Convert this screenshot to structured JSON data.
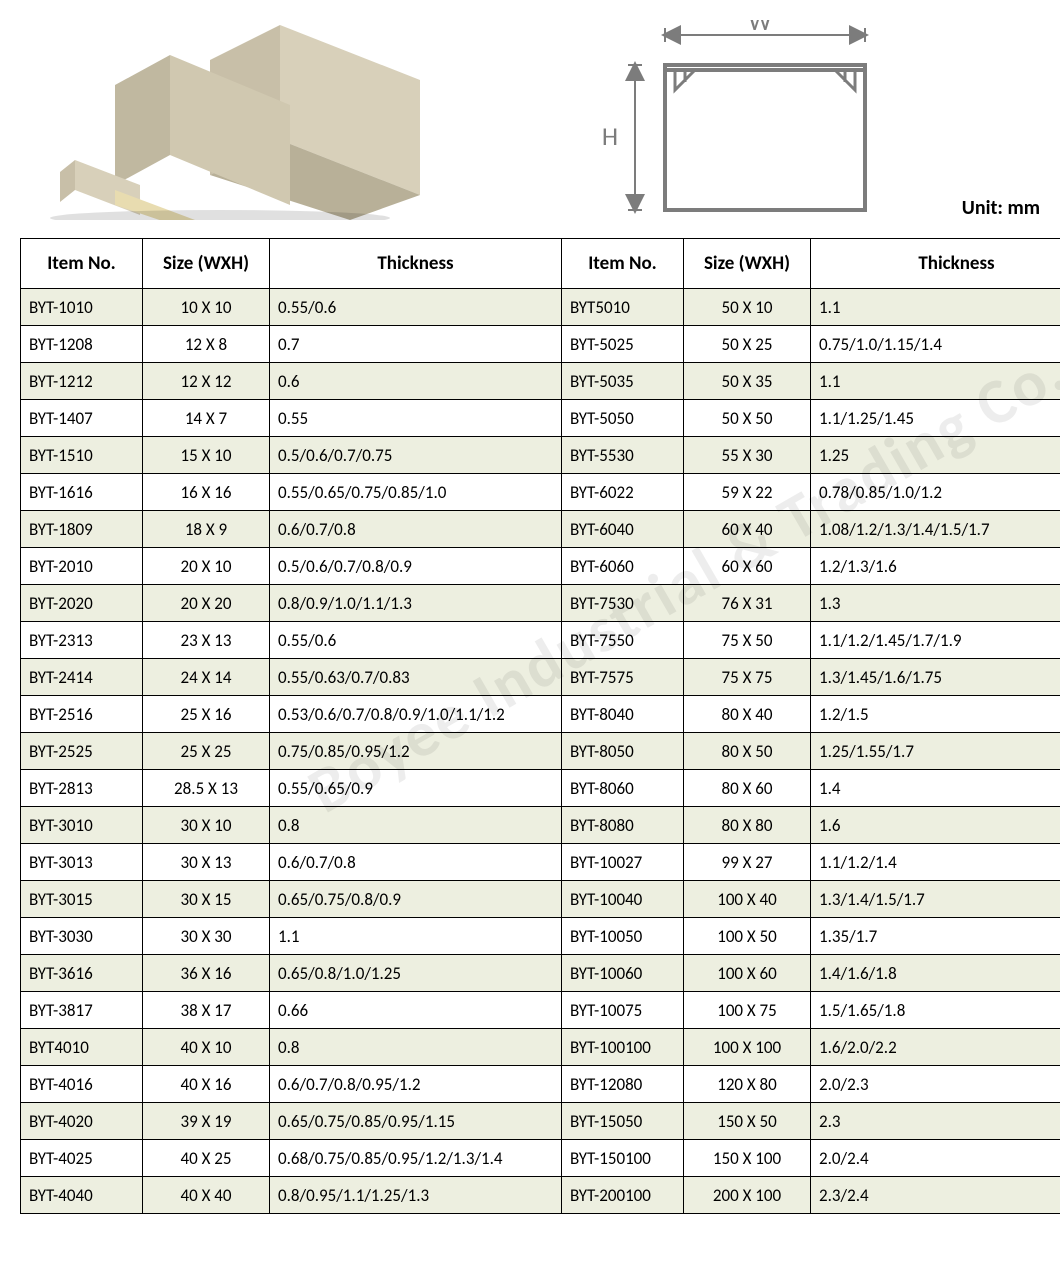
{
  "unit_label": "Unit: mm",
  "watermark_text": "Boyee Industrial & Trading Co., Limited",
  "diagram": {
    "w_label": "W",
    "h_label": "H",
    "stroke_color": "#7c7c7c",
    "stroke_width": 3,
    "arrow_color": "#7c7c7c",
    "label_color": "#7c7c7c",
    "label_fontsize": 26
  },
  "product_image": {
    "trunking_colors": [
      "#c8bfa8",
      "#d8d0ba",
      "#c0b8a0",
      "#e0d8c0"
    ],
    "shadow_color": "rgba(0,0,0,0.15)"
  },
  "table": {
    "columns": [
      "Item No.",
      "Size (WXH)",
      "Thickness",
      "Item No.",
      "Size (WXH)",
      "Thickness"
    ],
    "header_bg": "#ffffff",
    "row_odd_bg": "#edefe0",
    "row_even_bg": "#ffffff",
    "border_color": "#000000",
    "font_size": 17,
    "header_font_size": 19,
    "rows": [
      [
        "BYT-1010",
        "10 X 10",
        "0.55/0.6",
        "BYT5010",
        "50 X 10",
        "1.1"
      ],
      [
        "BYT-1208",
        "12 X 8",
        "0.7",
        "BYT-5025",
        "50 X 25",
        "0.75/1.0/1.15/1.4"
      ],
      [
        "BYT-1212",
        "12 X 12",
        "0.6",
        "BYT-5035",
        "50 X 35",
        "1.1"
      ],
      [
        "BYT-1407",
        "14 X 7",
        "0.55",
        "BYT-5050",
        "50 X 50",
        "1.1/1.25/1.45"
      ],
      [
        "BYT-1510",
        "15 X 10",
        "0.5/0.6/0.7/0.75",
        "BYT-5530",
        "55 X 30",
        "1.25"
      ],
      [
        "BYT-1616",
        "16 X 16",
        "0.55/0.65/0.75/0.85/1.0",
        "BYT-6022",
        "59 X 22",
        "0.78/0.85/1.0/1.2"
      ],
      [
        "BYT-1809",
        "18 X 9",
        "0.6/0.7/0.8",
        "BYT-6040",
        "60 X 40",
        "1.08/1.2/1.3/1.4/1.5/1.7"
      ],
      [
        "BYT-2010",
        "20 X 10",
        "0.5/0.6/0.7/0.8/0.9",
        "BYT-6060",
        "60 X 60",
        "1.2/1.3/1.6"
      ],
      [
        "BYT-2020",
        "20 X 20",
        "0.8/0.9/1.0/1.1/1.3",
        "BYT-7530",
        "76 X 31",
        "1.3"
      ],
      [
        "BYT-2313",
        "23 X 13",
        "0.55/0.6",
        "BYT-7550",
        "75 X 50",
        "1.1/1.2/1.45/1.7/1.9"
      ],
      [
        "BYT-2414",
        "24 X 14",
        "0.55/0.63/0.7/0.83",
        "BYT-7575",
        "75 X 75",
        "1.3/1.45/1.6/1.75"
      ],
      [
        "BYT-2516",
        "25 X 16",
        "0.53/0.6/0.7/0.8/0.9/1.0/1.1/1.2",
        "BYT-8040",
        "80 X 40",
        "1.2/1.5"
      ],
      [
        "BYT-2525",
        "25 X 25",
        "0.75/0.85/0.95/1.2",
        "BYT-8050",
        "80 X 50",
        "1.25/1.55/1.7"
      ],
      [
        "BYT-2813",
        "28.5 X 13",
        "0.55/0.65/0.9",
        "BYT-8060",
        "80 X 60",
        "1.4"
      ],
      [
        "BYT-3010",
        "30 X 10",
        "0.8",
        "BYT-8080",
        "80 X 80",
        "1.6"
      ],
      [
        "BYT-3013",
        "30 X 13",
        "0.6/0.7/0.8",
        "BYT-10027",
        "99 X 27",
        "1.1/1.2/1.4"
      ],
      [
        "BYT-3015",
        "30 X 15",
        "0.65/0.75/0.8/0.9",
        "BYT-10040",
        "100 X 40",
        "1.3/1.4/1.5/1.7"
      ],
      [
        "BYT-3030",
        "30 X 30",
        "1.1",
        "BYT-10050",
        "100 X 50",
        "1.35/1.7"
      ],
      [
        "BYT-3616",
        "36 X 16",
        "0.65/0.8/1.0/1.25",
        "BYT-10060",
        "100 X 60",
        "1.4/1.6/1.8"
      ],
      [
        "BYT-3817",
        "38 X 17",
        "0.66",
        "BYT-10075",
        "100 X 75",
        "1.5/1.65/1.8"
      ],
      [
        "BYT4010",
        "40 X 10",
        "0.8",
        "BYT-100100",
        "100 X 100",
        "1.6/2.0/2.2"
      ],
      [
        "BYT-4016",
        "40 X 16",
        "0.6/0.7/0.8/0.95/1.2",
        "BYT-12080",
        "120 X 80",
        "2.0/2.3"
      ],
      [
        "BYT-4020",
        "39 X 19",
        "0.65/0.75/0.85/0.95/1.15",
        "BYT-15050",
        "150 X 50",
        "2.3"
      ],
      [
        "BYT-4025",
        "40 X 25",
        "0.68/0.75/0.85/0.95/1.2/1.3/1.4",
        "BYT-150100",
        "150 X 100",
        "2.0/2.4"
      ],
      [
        "BYT-4040",
        "40 X 40",
        "0.8/0.95/1.1/1.25/1.3",
        "BYT-200100",
        "200 X 100",
        "2.3/2.4"
      ]
    ]
  }
}
